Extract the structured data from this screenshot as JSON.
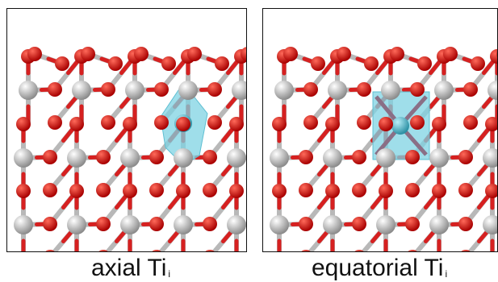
{
  "figure": {
    "left_panel": {
      "caption_main": "axial Ti",
      "caption_sub": "i",
      "interstitial": "axial"
    },
    "right_panel": {
      "caption_main": "equatorial Ti",
      "caption_sub": "i",
      "interstitial": "equatorial"
    },
    "colors": {
      "oxygen": "#d01010",
      "titanium": "#d9d9d9",
      "interstitial": "#4cb6c9",
      "polyhedron": "#7fd3e3",
      "frame": "#111111"
    }
  }
}
